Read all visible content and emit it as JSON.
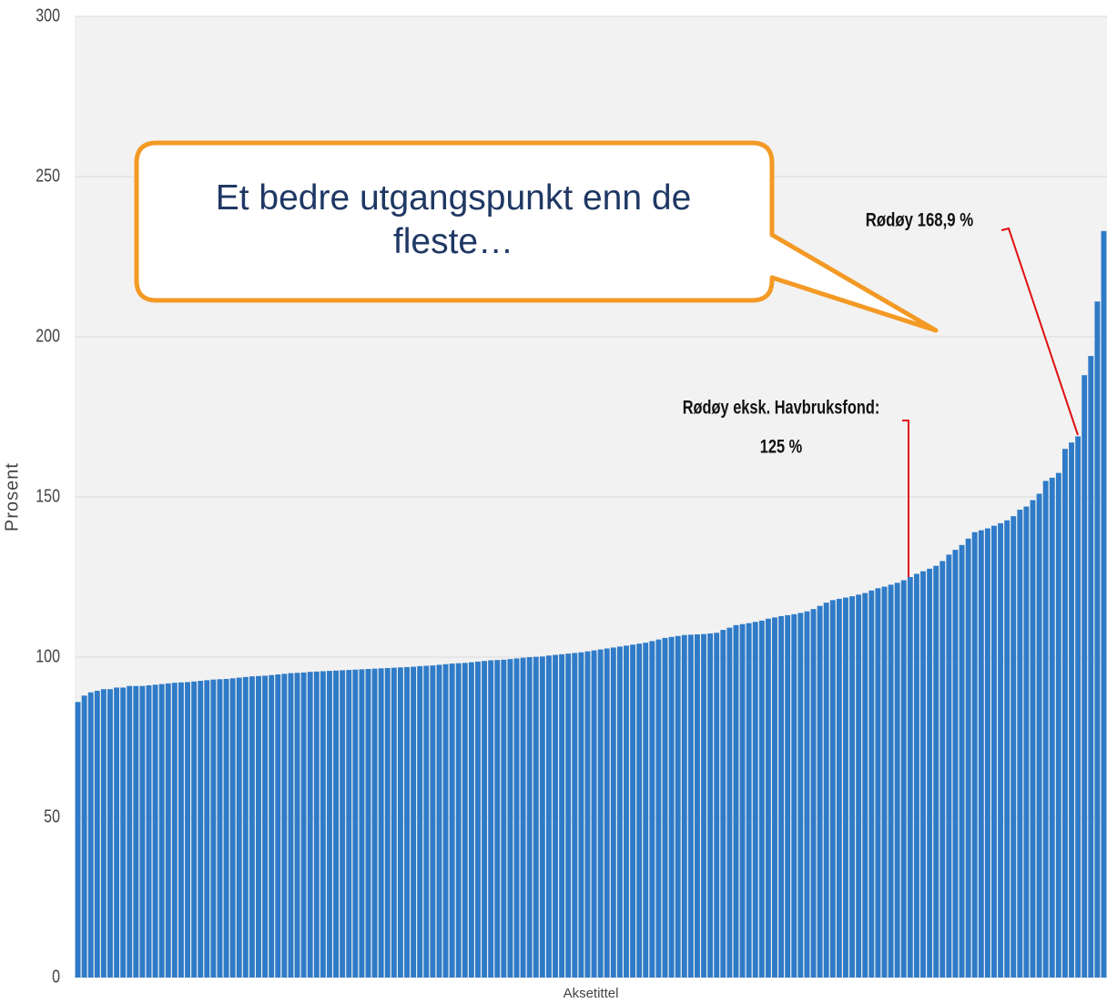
{
  "chart_data": {
    "type": "bar",
    "y_label": "Prosent",
    "x_label": "Aksetittel",
    "callout": "Et bedre utgangspunkt enn de fleste…",
    "annotations": [
      "Rødøy 168,9 %",
      "Rødøy eksk. Havbruksfond:",
      "125 %"
    ],
    "color": "#2f7bc8",
    "grid": true,
    "ylim": [
      0,
      300
    ],
    "yticks": [
      0,
      50,
      100,
      150,
      200,
      250,
      300
    ],
    "values": [
      86,
      88,
      89,
      89.5,
      90,
      90,
      90.5,
      90.5,
      91,
      91,
      91,
      91.2,
      91.4,
      91.6,
      91.8,
      92,
      92.1,
      92.2,
      92.4,
      92.6,
      92.8,
      93,
      93.1,
      93.2,
      93.4,
      93.6,
      93.8,
      94,
      94.1,
      94.2,
      94.4,
      94.6,
      94.8,
      95,
      95.1,
      95.2,
      95.4,
      95.5,
      95.6,
      95.7,
      95.8,
      95.9,
      96,
      96.1,
      96.2,
      96.3,
      96.4,
      96.5,
      96.6,
      96.7,
      96.8,
      96.9,
      97,
      97.2,
      97.3,
      97.4,
      97.6,
      97.8,
      98,
      98.1,
      98.2,
      98.4,
      98.6,
      98.8,
      99,
      99.1,
      99.2,
      99.4,
      99.6,
      99.8,
      100,
      100.1,
      100.2,
      100.5,
      100.7,
      100.9,
      101.1,
      101.3,
      101.5,
      101.8,
      102.1,
      102.4,
      102.7,
      103,
      103.3,
      103.6,
      103.9,
      104.2,
      104.5,
      105,
      105.5,
      106,
      106.3,
      106.6,
      106.9,
      107,
      107.1,
      107.2,
      107.4,
      107.6,
      108.5,
      109.2,
      110,
      110.3,
      110.6,
      111,
      111.4,
      112,
      112.4,
      112.8,
      113.1,
      113.4,
      113.8,
      114.3,
      115,
      116,
      117,
      117.8,
      118.2,
      118.6,
      119,
      119.5,
      120,
      120.8,
      121.5,
      122,
      122.6,
      123.2,
      124,
      125,
      126,
      126.8,
      127.6,
      128.5,
      130,
      132,
      133.5,
      135,
      137,
      139,
      139.6,
      140.2,
      141,
      141.8,
      142.7,
      144,
      146,
      147,
      149,
      151,
      155,
      156,
      157.5,
      165,
      167,
      168.9,
      188,
      194,
      211,
      233
    ]
  }
}
